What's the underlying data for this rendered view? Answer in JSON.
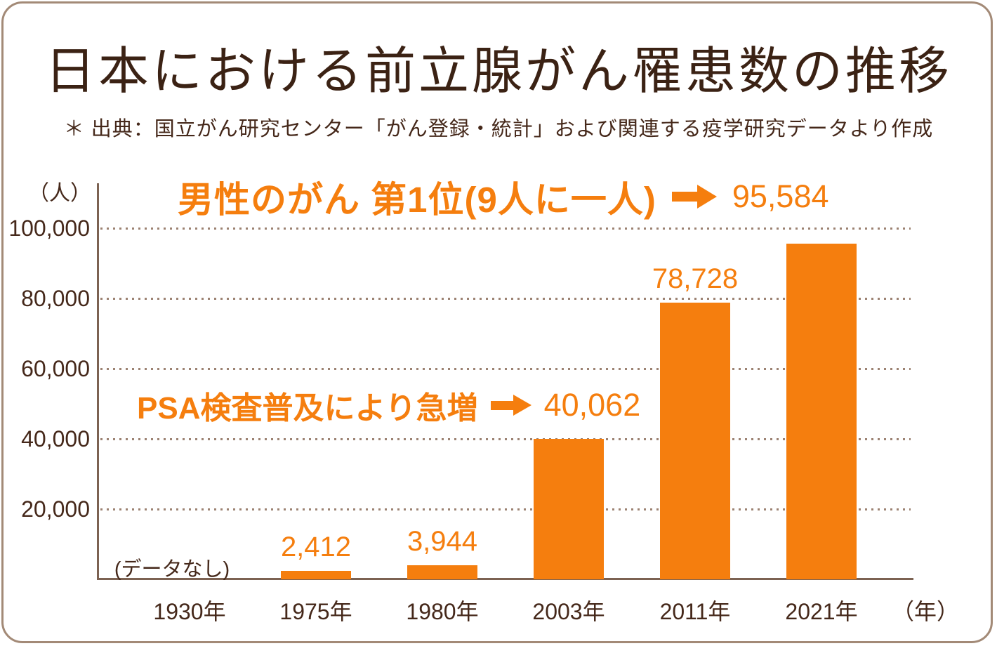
{
  "header": {
    "title": "日本における前立腺がん罹患数の推移",
    "source_note": "＊ 出典：国立がん研究センター「がん登録・統計」および関連する疫学研究データより作成"
  },
  "colors": {
    "orange": "#F57E0E",
    "title_brown": "#3B2214",
    "text_brown": "#45281A",
    "card_border_tan": "#A38A77",
    "axis_brown": "#7C6252",
    "grid_dot_brown": "#9C8272"
  },
  "chart_data": {
    "type": "bar",
    "title": "日本における前立腺がん罹患数の推移",
    "xlabel": "年",
    "ylabel": "人",
    "y_unit": "（人）",
    "x_unit": "（年）",
    "ylim": [
      0,
      110000
    ],
    "grid": "dotted-horizontal",
    "categories": [
      "1930年",
      "1975年",
      "1980年",
      "2003年",
      "2011年",
      "2021年"
    ],
    "values": [
      null,
      2412,
      3944,
      40062,
      78728,
      95584
    ],
    "bar_labels": [
      "(データなし)",
      "2,412",
      "3,944",
      "",
      "78,728",
      ""
    ],
    "y_ticks": [
      {
        "label": "20,000",
        "value": 20000
      },
      {
        "label": "40,000",
        "value": 40000
      },
      {
        "label": "60,000",
        "value": 60000
      },
      {
        "label": "80,000",
        "value": 80000
      },
      {
        "label": "100,000",
        "value": 100000
      }
    ],
    "annotations": {
      "rank": {
        "text": "男性のがん 第1位(9人に一人)",
        "icon": "right-arrow",
        "value_label": "95,584"
      },
      "psa": {
        "text": "PSA検査普及により急増",
        "icon": "right-arrow",
        "value_label": "40,062"
      }
    }
  }
}
